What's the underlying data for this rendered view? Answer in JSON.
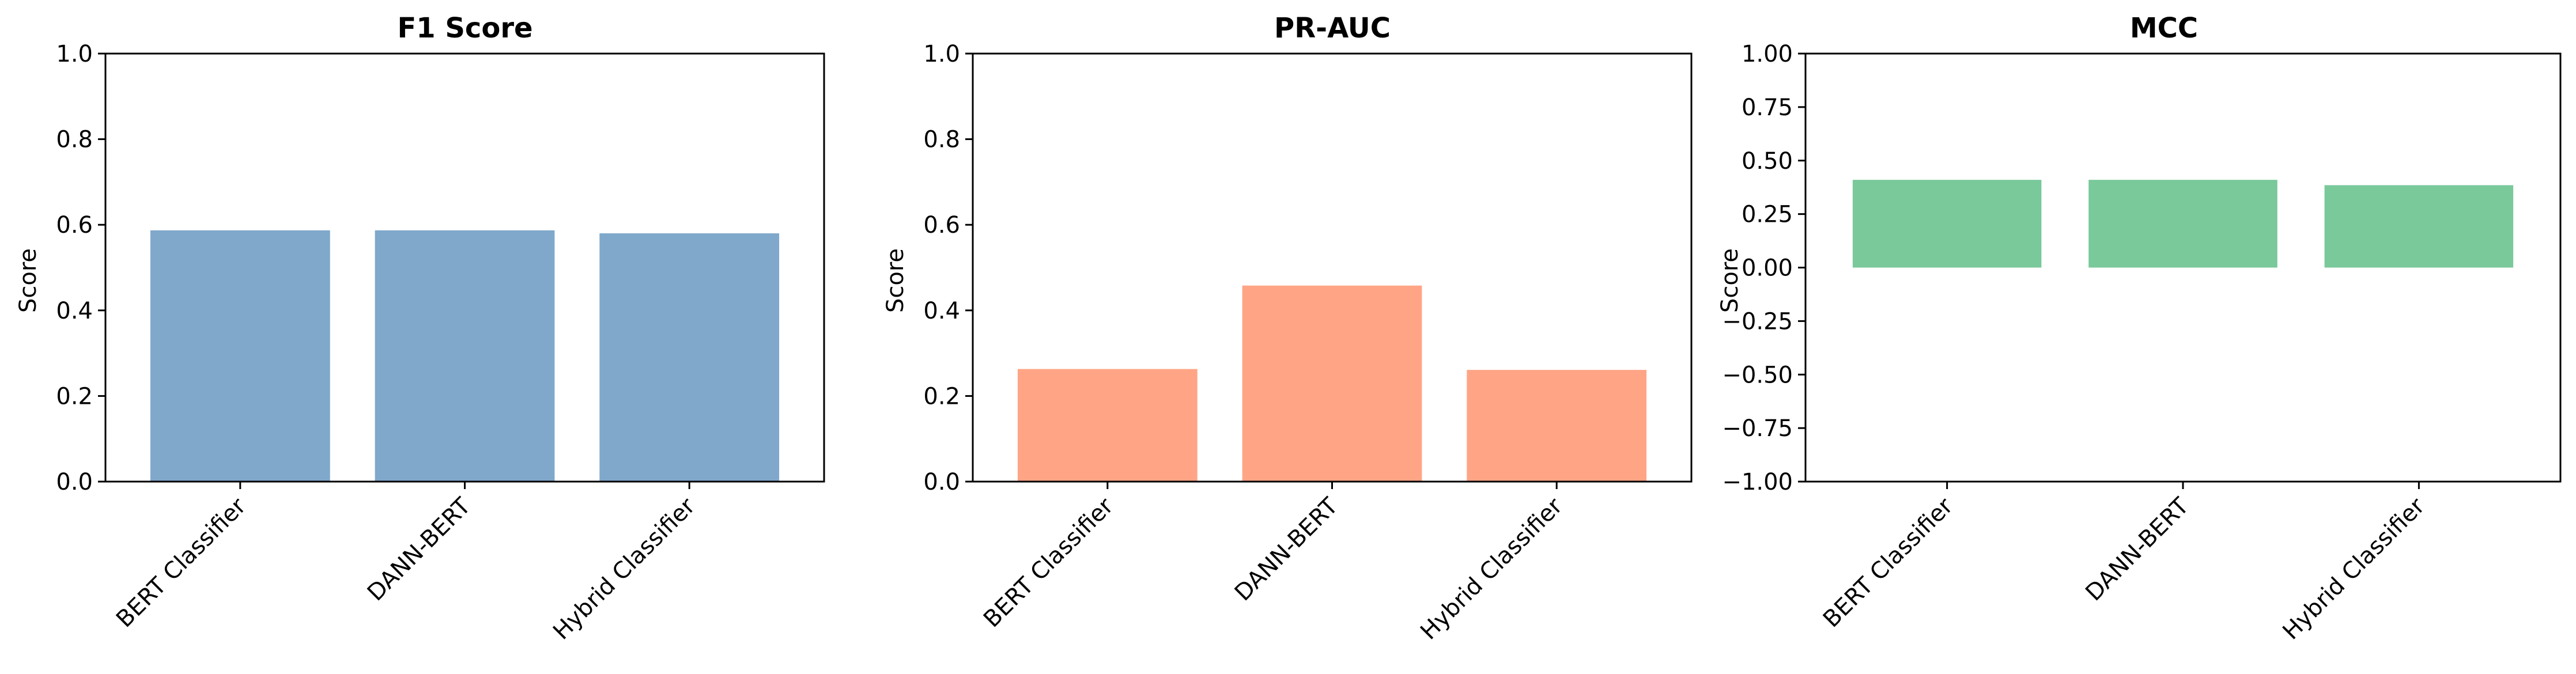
{
  "colors": {
    "f1": "#7fa8cb",
    "prauc": "#ffa586",
    "mcc": "#79c99a",
    "axis": "#000000"
  },
  "chart_data": [
    {
      "type": "bar",
      "title": "F1 Score",
      "xlabel": "",
      "ylabel": "Score",
      "categories": [
        "BERT Classifier",
        "DANN-BERT",
        "Hybrid Classifier"
      ],
      "values": [
        0.587,
        0.587,
        0.58
      ],
      "ylim": [
        0,
        1
      ],
      "yticks": [
        "0.0",
        "0.2",
        "0.4",
        "0.6",
        "0.8",
        "1.0"
      ],
      "ytick_values": [
        0,
        0.2,
        0.4,
        0.6,
        0.8,
        1.0
      ],
      "color": "#7fa8cb",
      "grid": false
    },
    {
      "type": "bar",
      "title": "PR-AUC",
      "xlabel": "",
      "ylabel": "Score",
      "categories": [
        "BERT Classifier",
        "DANN-BERT",
        "Hybrid Classifier"
      ],
      "values": [
        0.263,
        0.458,
        0.261
      ],
      "ylim": [
        0,
        1
      ],
      "yticks": [
        "0.0",
        "0.2",
        "0.4",
        "0.6",
        "0.8",
        "1.0"
      ],
      "ytick_values": [
        0,
        0.2,
        0.4,
        0.6,
        0.8,
        1.0
      ],
      "color": "#ffa586",
      "grid": false
    },
    {
      "type": "bar",
      "title": "MCC",
      "xlabel": "",
      "ylabel": "Score",
      "categories": [
        "BERT Classifier",
        "DANN-BERT",
        "Hybrid Classifier"
      ],
      "values": [
        0.41,
        0.41,
        0.385
      ],
      "ylim": [
        -1,
        1
      ],
      "yticks": [
        "−1.00",
        "−0.75",
        "−0.50",
        "−0.25",
        "0.00",
        "0.25",
        "0.50",
        "0.75",
        "1.00"
      ],
      "ytick_values": [
        -1,
        -0.75,
        -0.5,
        -0.25,
        0,
        0.25,
        0.5,
        0.75,
        1.0
      ],
      "color": "#79c99a",
      "grid": false
    }
  ]
}
